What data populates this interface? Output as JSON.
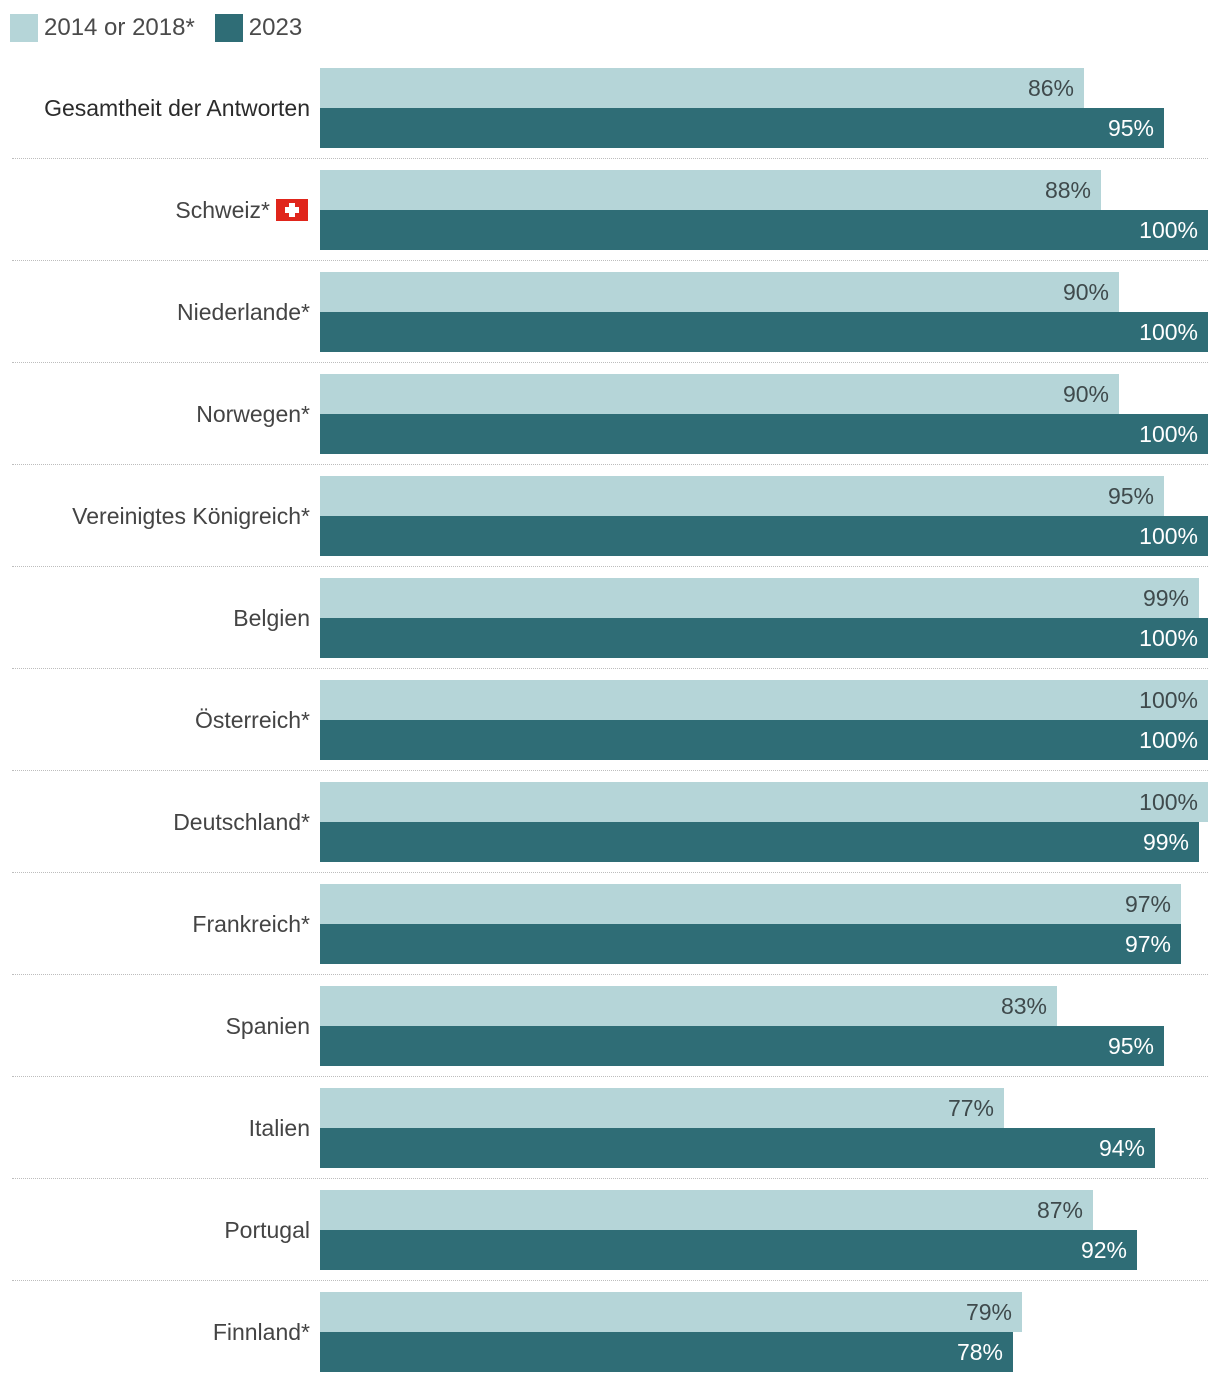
{
  "legend": {
    "series_old_label": "2014 or 2018*",
    "series_new_label": "2023",
    "series_old_color": "#b5d5d8",
    "series_new_color": "#2f6d76"
  },
  "flag_icon": "swiss-flag-icon",
  "chart_data": {
    "type": "bar",
    "orientation": "horizontal",
    "title": "",
    "xlabel": "",
    "ylabel": "",
    "xlim": [
      0,
      100
    ],
    "categories": [
      "Gesamtheit der Antworten",
      "Schweiz*",
      "Niederlande*",
      "Norwegen*",
      "Vereinigtes Königreich*",
      "Belgien",
      "Österreich*",
      "Deutschland*",
      "Frankreich*",
      "Spanien",
      "Italien",
      "Portugal",
      "Finnland*"
    ],
    "series": [
      {
        "name": "2014 or 2018*",
        "values": [
          86,
          88,
          90,
          90,
          95,
          99,
          100,
          100,
          97,
          83,
          77,
          87,
          79
        ],
        "labels": [
          "86%",
          "88%",
          "90%",
          "90%",
          "95%",
          "99%",
          "100%",
          "100%",
          "97%",
          "83%",
          "77%",
          "87%",
          "79%"
        ]
      },
      {
        "name": "2023",
        "values": [
          95,
          100,
          100,
          100,
          100,
          100,
          100,
          99,
          97,
          95,
          94,
          92,
          78
        ],
        "labels": [
          "95%",
          "100%",
          "100%",
          "100%",
          "100%",
          "100%",
          "100%",
          "99%",
          "97%",
          "95%",
          "94%",
          "92%",
          "78%"
        ]
      }
    ]
  }
}
